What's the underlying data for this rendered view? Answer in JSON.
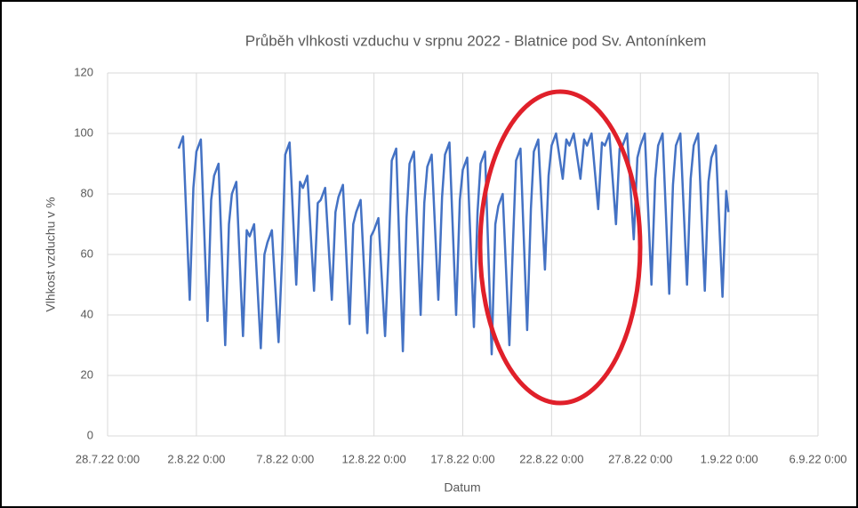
{
  "chart_data": {
    "type": "line",
    "title": "Průběh vlhkosti vzduchu v srpnu 2022 - Blatnice pod Sv. Antonínkem",
    "x_label": "Datum",
    "y_label": "Vlhkost vzduchu v %",
    "x": [
      "1.8.22 0:00",
      "1.8.22 6:00",
      "1.8.22 15:00",
      "1.8.22 20:00",
      "2.8.22 0:00",
      "2.8.22 6:00",
      "2.8.22 15:00",
      "2.8.22 20:00",
      "3.8.22 0:00",
      "3.8.22 6:00",
      "3.8.22 15:00",
      "3.8.22 20:00",
      "4.8.22 0:00",
      "4.8.22 6:00",
      "4.8.22 15:00",
      "4.8.22 20:00",
      "5.8.22 0:00",
      "5.8.22 6:00",
      "5.8.22 15:00",
      "5.8.22 20:00",
      "6.8.22 0:00",
      "6.8.22 6:00",
      "6.8.22 15:00",
      "6.8.22 20:00",
      "7.8.22 0:00",
      "7.8.22 6:00",
      "7.8.22 15:00",
      "7.8.22 20:00",
      "8.8.22 0:00",
      "8.8.22 6:00",
      "8.8.22 15:00",
      "8.8.22 20:00",
      "9.8.22 0:00",
      "9.8.22 6:00",
      "9.8.22 15:00",
      "9.8.22 20:00",
      "10.8.22 0:00",
      "10.8.22 6:00",
      "10.8.22 15:00",
      "10.8.22 20:00",
      "11.8.22 0:00",
      "11.8.22 6:00",
      "11.8.22 15:00",
      "11.8.22 20:00",
      "12.8.22 0:00",
      "12.8.22 6:00",
      "12.8.22 15:00",
      "12.8.22 20:00",
      "13.8.22 0:00",
      "13.8.22 6:00",
      "13.8.22 15:00",
      "13.8.22 20:00",
      "14.8.22 0:00",
      "14.8.22 6:00",
      "14.8.22 15:00",
      "14.8.22 20:00",
      "15.8.22 0:00",
      "15.8.22 6:00",
      "15.8.22 15:00",
      "15.8.22 20:00",
      "16.8.22 0:00",
      "16.8.22 6:00",
      "16.8.22 15:00",
      "16.8.22 20:00",
      "17.8.22 0:00",
      "17.8.22 6:00",
      "17.8.22 15:00",
      "17.8.22 20:00",
      "18.8.22 0:00",
      "18.8.22 6:00",
      "18.8.22 15:00",
      "18.8.22 20:00",
      "19.8.22 0:00",
      "19.8.22 6:00",
      "19.8.22 15:00",
      "19.8.22 20:00",
      "20.8.22 0:00",
      "20.8.22 6:00",
      "20.8.22 15:00",
      "20.8.22 20:00",
      "21.8.22 0:00",
      "21.8.22 6:00",
      "21.8.22 15:00",
      "21.8.22 20:00",
      "22.8.22 0:00",
      "22.8.22 6:00",
      "22.8.22 15:00",
      "22.8.22 20:00",
      "23.8.22 0:00",
      "23.8.22 6:00",
      "23.8.22 15:00",
      "23.8.22 20:00",
      "24.8.22 0:00",
      "24.8.22 6:00",
      "24.8.22 15:00",
      "24.8.22 20:00",
      "25.8.22 0:00",
      "25.8.22 6:00",
      "25.8.22 15:00",
      "25.8.22 20:00",
      "26.8.22 0:00",
      "26.8.22 6:00",
      "26.8.22 15:00",
      "26.8.22 20:00",
      "27.8.22 0:00",
      "27.8.22 6:00",
      "27.8.22 15:00",
      "27.8.22 20:00",
      "28.8.22 0:00",
      "28.8.22 6:00",
      "28.8.22 15:00",
      "28.8.22 20:00",
      "29.8.22 0:00",
      "29.8.22 6:00",
      "29.8.22 15:00",
      "29.8.22 20:00",
      "30.8.22 0:00",
      "30.8.22 6:00",
      "30.8.22 15:00",
      "30.8.22 20:00",
      "31.8.22 0:00",
      "31.8.22 6:00",
      "31.8.22 15:00",
      "31.8.22 20:00",
      "31.8.22 23:00"
    ],
    "series": [
      {
        "color": "#4472c4",
        "values": [
          95,
          99,
          45,
          82,
          94,
          98,
          38,
          78,
          86,
          90,
          30,
          70,
          80,
          84,
          33,
          68,
          66,
          70,
          29,
          60,
          64,
          68,
          31,
          60,
          93,
          97,
          50,
          84,
          82,
          86,
          48,
          77,
          78,
          82,
          45,
          74,
          79,
          83,
          37,
          70,
          74,
          78,
          34,
          66,
          68,
          72,
          33,
          62,
          91,
          95,
          28,
          72,
          90,
          94,
          40,
          77,
          89,
          93,
          45,
          79,
          93,
          97,
          40,
          78,
          88,
          92,
          36,
          74,
          90,
          94,
          27,
          70,
          76,
          80,
          30,
          65,
          91,
          95,
          35,
          75,
          94,
          98,
          55,
          86,
          96,
          100,
          85,
          98,
          96,
          100,
          85,
          98,
          96,
          100,
          75,
          97,
          96,
          100,
          70,
          95,
          96,
          100,
          65,
          92,
          96,
          100,
          50,
          85,
          96,
          100,
          47,
          83,
          96,
          100,
          50,
          85,
          96,
          100,
          48,
          84,
          92,
          96,
          46,
          81,
          74
        ]
      }
    ],
    "xlim": [
      "28.7.22 0:00",
      "6.9.22 0:00"
    ],
    "xticks": [
      "28.7.22 0:00",
      "2.8.22 0:00",
      "7.8.22 0:00",
      "12.8.22 0:00",
      "17.8.22 0:00",
      "22.8.22 0:00",
      "27.8.22 0:00",
      "1.9.22 0:00",
      "6.9.22 0:00"
    ],
    "ylim": [
      0,
      120
    ],
    "yticks": [
      0,
      20,
      40,
      60,
      80,
      100,
      120
    ],
    "grid": true
  }
}
